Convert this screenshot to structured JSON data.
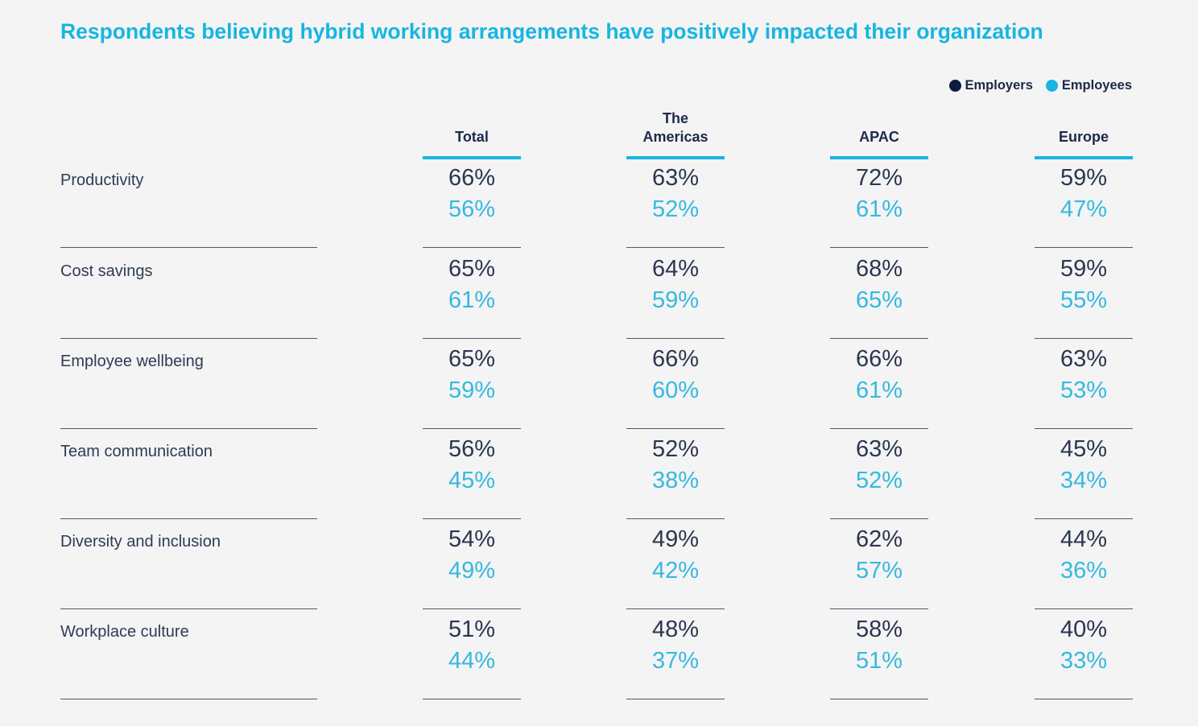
{
  "chart_data": {
    "type": "table",
    "title": "Respondents believing hybrid working arrangements have positively impacted their organization",
    "legend": [
      {
        "name": "Employers",
        "color": "#0d1b3e"
      },
      {
        "name": "Employees",
        "color": "#18b5e1"
      }
    ],
    "legend_placement": "top-right",
    "columns": [
      "Total",
      "The\nAmericas",
      "APAC",
      "Europe"
    ],
    "rows": [
      {
        "label": "Productivity",
        "employers": [
          "66%",
          "63%",
          "72%",
          "59%"
        ],
        "employees": [
          "56%",
          "52%",
          "61%",
          "47%"
        ]
      },
      {
        "label": "Cost savings",
        "employers": [
          "65%",
          "64%",
          "68%",
          "59%"
        ],
        "employees": [
          "61%",
          "59%",
          "65%",
          "55%"
        ]
      },
      {
        "label": "Employee wellbeing",
        "employers": [
          "65%",
          "66%",
          "66%",
          "63%"
        ],
        "employees": [
          "59%",
          "60%",
          "61%",
          "53%"
        ]
      },
      {
        "label": "Team communication",
        "employers": [
          "56%",
          "52%",
          "63%",
          "45%"
        ],
        "employees": [
          "45%",
          "38%",
          "52%",
          "34%"
        ]
      },
      {
        "label": "Diversity and inclusion",
        "employers": [
          "54%",
          "49%",
          "62%",
          "44%"
        ],
        "employees": [
          "49%",
          "42%",
          "57%",
          "36%"
        ]
      },
      {
        "label": "Workplace culture",
        "employers": [
          "51%",
          "48%",
          "58%",
          "40%"
        ],
        "employees": [
          "44%",
          "37%",
          "51%",
          "33%"
        ]
      }
    ]
  }
}
